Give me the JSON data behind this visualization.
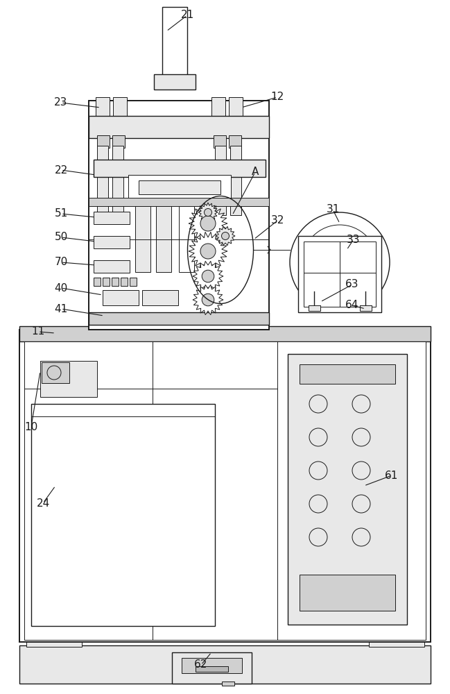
{
  "bg_color": "#ffffff",
  "line_color": "#1a1a1a",
  "gray1": "#e8e8e8",
  "gray2": "#d0d0d0",
  "gray3": "#b8b8b8",
  "fig_width": 6.49,
  "fig_height": 10.0,
  "dpi": 100
}
